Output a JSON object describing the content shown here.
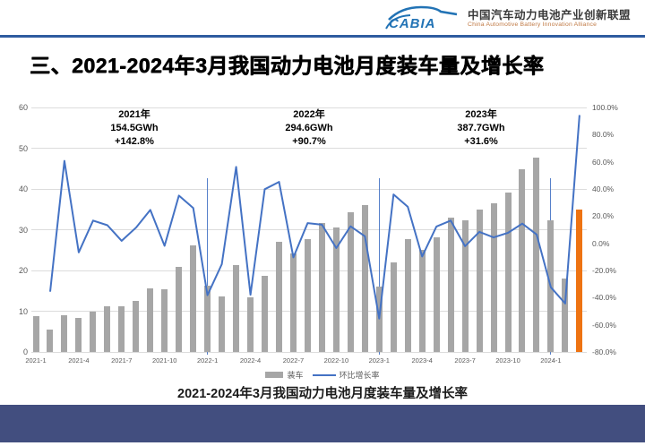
{
  "header": {
    "logo": {
      "brand": "CABIA",
      "name_cn": "中国汽车动力电池产业创新联盟",
      "name_en": "China Automotive Battery Innovation Alliance"
    }
  },
  "title": "三、2021-2024年3月我国动力电池月度装车量及增长率",
  "chart_data": {
    "type": "bar",
    "title": "2021-2024年3月我国动力电池月度装车量及增长率",
    "categories": [
      "2021-1",
      "2021-2",
      "2021-3",
      "2021-4",
      "2021-5",
      "2021-6",
      "2021-7",
      "2021-8",
      "2021-9",
      "2021-10",
      "2021-11",
      "2021-12",
      "2022-1",
      "2022-2",
      "2022-3",
      "2022-4",
      "2022-5",
      "2022-6",
      "2022-7",
      "2022-8",
      "2022-9",
      "2022-10",
      "2022-11",
      "2022-12",
      "2023-1",
      "2023-2",
      "2023-3",
      "2023-4",
      "2023-5",
      "2023-6",
      "2023-7",
      "2023-8",
      "2023-9",
      "2023-10",
      "2023-11",
      "2023-12",
      "2024-1",
      "2024-2",
      "2024-3"
    ],
    "series": [
      {
        "name": "装车",
        "type": "bar",
        "unit": "GWh",
        "values": [
          8.7,
          5.6,
          9.0,
          8.4,
          9.8,
          11.1,
          11.3,
          12.6,
          15.7,
          15.4,
          20.8,
          26.2,
          16.2,
          13.7,
          21.4,
          13.3,
          18.6,
          27.0,
          24.2,
          27.8,
          31.6,
          30.5,
          34.3,
          36.1,
          16.1,
          21.9,
          27.8,
          25.1,
          28.2,
          32.9,
          32.2,
          34.9,
          36.4,
          39.2,
          44.9,
          47.8,
          32.3,
          18.0,
          35.0
        ]
      },
      {
        "name": "环比增长率",
        "type": "line",
        "unit": "%",
        "values": [
          null,
          -35.6,
          60.7,
          -6.7,
          16.7,
          13.3,
          1.8,
          11.5,
          24.6,
          -1.9,
          35.1,
          26.0,
          -38.2,
          -15.4,
          56.2,
          -37.9,
          39.8,
          45.2,
          -10.4,
          14.9,
          13.7,
          -3.5,
          12.5,
          5.2,
          -55.4,
          36.0,
          26.9,
          -9.7,
          12.4,
          16.7,
          -2.1,
          8.4,
          4.3,
          7.7,
          14.5,
          6.5,
          -32.4,
          -44.3,
          94.4
        ]
      }
    ],
    "x_tick_labels": [
      "2021-1",
      "2021-4",
      "2021-7",
      "2021-10",
      "2022-1",
      "2022-4",
      "2022-7",
      "2022-10",
      "2023-1",
      "2023-4",
      "2023-7",
      "2023-10",
      "2024-1"
    ],
    "y_left": {
      "min": 0,
      "max": 60,
      "ticks": [
        0,
        10,
        20,
        30,
        40,
        50,
        60
      ]
    },
    "y_right": {
      "min": -80,
      "max": 100,
      "tick_labels": [
        "100.0%",
        "80.0%",
        "60.0%",
        "40.0%",
        "20.0%",
        "0.0%",
        "-20.0%",
        "-40.0%",
        "-60.0%",
        "-80.0%"
      ]
    },
    "annotations": [
      {
        "lines": [
          "2021年",
          "154.5GWh",
          "+142.8%"
        ]
      },
      {
        "lines": [
          "2022年",
          "294.6GWh",
          "+90.7%"
        ]
      },
      {
        "lines": [
          "2023年",
          "387.7GWh",
          "+31.6%"
        ]
      }
    ],
    "year_dividers": [
      "2022-1",
      "2023-1",
      "2024-1"
    ],
    "highlight_last_bar": true,
    "legend": [
      {
        "label": "装车"
      },
      {
        "label": "环比增长率"
      }
    ],
    "colors": {
      "bar": "#a6a6a6",
      "bar_highlight": "#ee7312",
      "line": "#4472c4",
      "grid": "#dcdcdc",
      "axis_text": "#595959",
      "header_rule": "#2e5b9f",
      "footer": "#424e7f",
      "logo_blue": "#2273b5"
    },
    "caption": "2021-2024年3月我国动力电池月度装车量及增长率"
  }
}
